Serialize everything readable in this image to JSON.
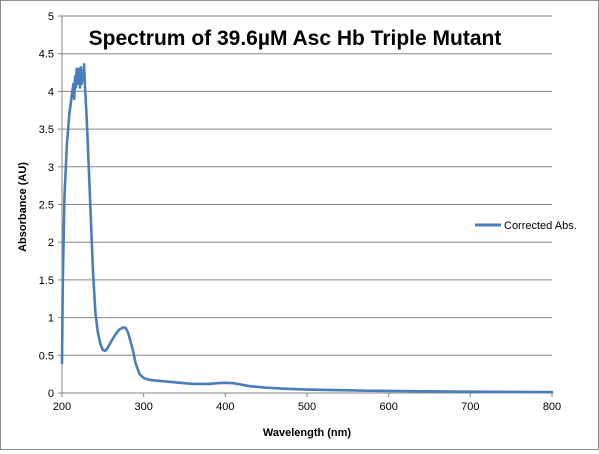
{
  "chart_data": {
    "type": "line",
    "title": "Spectrum of 39.6µM Asc Hb Triple Mutant",
    "xlabel": "Wavelength (nm)",
    "ylabel": "Absorbance (AU)",
    "xlim": [
      200,
      800
    ],
    "ylim": [
      0,
      5
    ],
    "xticks": [
      "200",
      "300",
      "400",
      "500",
      "600",
      "700",
      "800"
    ],
    "yticks": [
      "0",
      "0.5",
      "1",
      "1.5",
      "2",
      "2.5",
      "3",
      "3.5",
      "4",
      "4.5",
      "5"
    ],
    "grid": "horizontal",
    "legend_position": "right",
    "series": [
      {
        "name": "Corrected Abs.",
        "color": "#4a7ebb",
        "x": [
          200,
          201,
          203,
          206,
          209,
          212,
          214,
          215,
          216,
          217,
          218,
          219,
          220,
          221,
          222,
          223,
          224,
          225,
          226,
          227,
          228,
          229,
          230,
          232,
          235,
          238,
          241,
          244,
          247,
          250,
          253,
          256,
          260,
          265,
          270,
          275,
          278,
          281,
          284,
          287,
          290,
          295,
          300,
          305,
          310,
          320,
          330,
          340,
          350,
          360,
          370,
          380,
          390,
          400,
          410,
          420,
          430,
          440,
          450,
          475,
          500,
          525,
          550,
          575,
          600,
          625,
          650,
          675,
          700,
          725,
          750,
          775,
          800
        ],
        "y": [
          0.4,
          1.5,
          2.6,
          3.3,
          3.7,
          3.95,
          4.1,
          3.9,
          4.2,
          4.05,
          4.3,
          4.1,
          4.2,
          4.3,
          4.05,
          4.32,
          4.1,
          4.2,
          4.15,
          4.36,
          4.1,
          3.9,
          3.7,
          3.2,
          2.4,
          1.6,
          1.05,
          0.8,
          0.65,
          0.57,
          0.56,
          0.6,
          0.68,
          0.77,
          0.84,
          0.87,
          0.86,
          0.8,
          0.68,
          0.56,
          0.4,
          0.25,
          0.2,
          0.18,
          0.17,
          0.16,
          0.15,
          0.14,
          0.13,
          0.12,
          0.12,
          0.12,
          0.13,
          0.135,
          0.13,
          0.11,
          0.09,
          0.08,
          0.07,
          0.055,
          0.045,
          0.04,
          0.035,
          0.03,
          0.028,
          0.025,
          0.023,
          0.02,
          0.018,
          0.016,
          0.015,
          0.013,
          0.012
        ]
      }
    ]
  }
}
